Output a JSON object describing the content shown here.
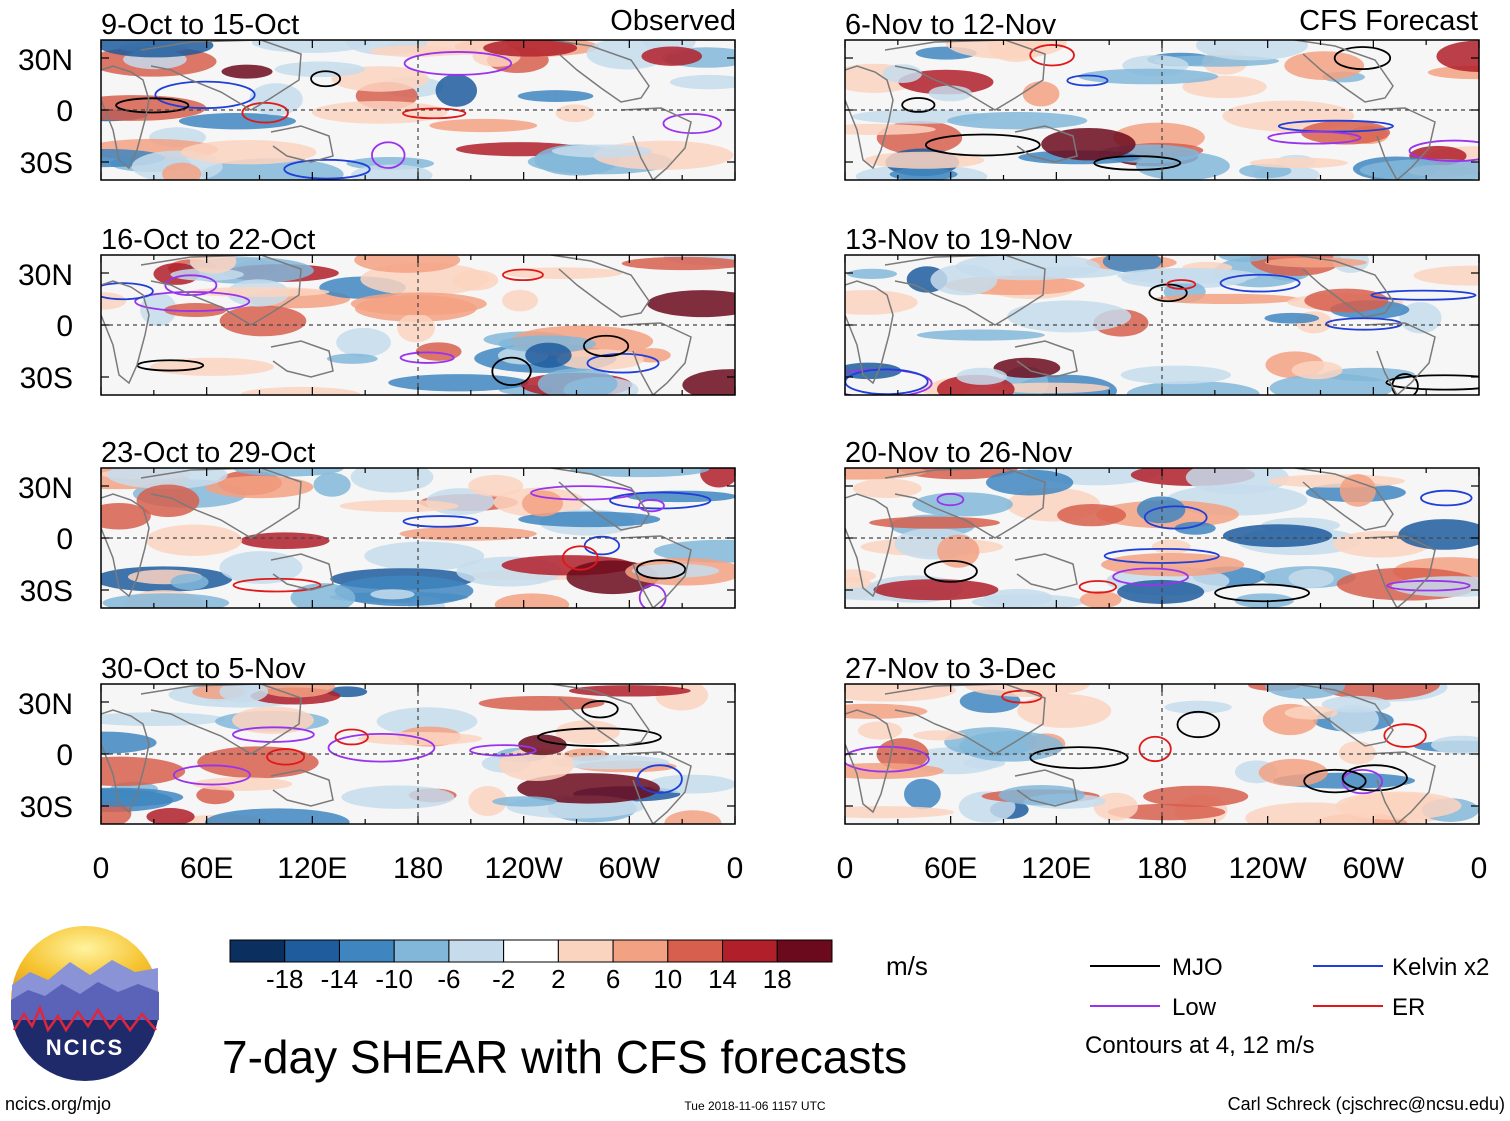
{
  "chart_data": {
    "type": "heatmap",
    "title": "7-day SHEAR with CFS forecasts",
    "units": "m/s",
    "column_labels": {
      "left": "Observed",
      "right": "CFS Forecast"
    },
    "x_ticks": [
      "0",
      "60E",
      "120E",
      "180",
      "120W",
      "60W",
      "0"
    ],
    "y_ticks": [
      "30N",
      "0",
      "30S"
    ],
    "panels": [
      {
        "id": "obs-1",
        "title": "9-Oct to 15-Oct",
        "kind": "observed"
      },
      {
        "id": "obs-2",
        "title": "16-Oct to 22-Oct",
        "kind": "observed"
      },
      {
        "id": "obs-3",
        "title": "23-Oct to 29-Oct",
        "kind": "observed"
      },
      {
        "id": "obs-4",
        "title": "30-Oct to 5-Nov",
        "kind": "observed"
      },
      {
        "id": "fc-1",
        "title": "6-Nov to 12-Nov",
        "kind": "forecast"
      },
      {
        "id": "fc-2",
        "title": "13-Nov to 19-Nov",
        "kind": "forecast"
      },
      {
        "id": "fc-3",
        "title": "20-Nov to 26-Nov",
        "kind": "forecast"
      },
      {
        "id": "fc-4",
        "title": "27-Nov to 3-Dec",
        "kind": "forecast"
      }
    ],
    "colorbar": {
      "labels": [
        "-18",
        "-14",
        "-10",
        "-6",
        "-2",
        "2",
        "6",
        "10",
        "14",
        "18"
      ],
      "colors": [
        "#0b2f5e",
        "#1f5c9e",
        "#3f86c0",
        "#82b7d9",
        "#c6dcec",
        "#ffffff",
        "#fbd4c0",
        "#f3a183",
        "#d75f4d",
        "#b01f2a",
        "#6b0a1c"
      ]
    },
    "legend": [
      {
        "label": "MJO",
        "color": "#000000"
      },
      {
        "label": "Kelvin x2",
        "color": "#1f3fd8"
      },
      {
        "label": "Low",
        "color": "#9933ee"
      },
      {
        "label": "ER",
        "color": "#e01818"
      }
    ],
    "contour_note": "Contours at 4, 12 m/s"
  },
  "footer": {
    "site": "ncics.org/mjo",
    "timestamp": "Tue 2018-11-06 1157 UTC",
    "credit": "Carl Schreck (cjschrec@ncsu.edu)"
  },
  "logo": {
    "text": "NCICS"
  }
}
